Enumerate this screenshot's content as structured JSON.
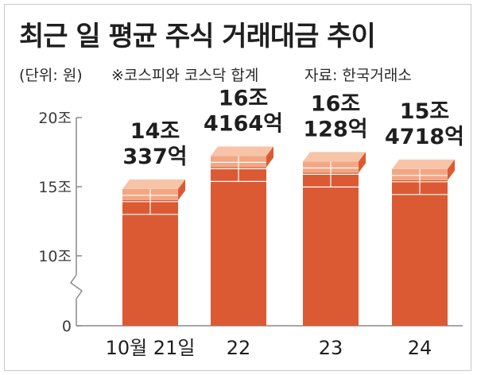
{
  "header": {
    "title": "최근 일 평균 주식 거래대금 추이",
    "unit": "(단위: 원)",
    "note": "※코스피와 코스닥 합계",
    "source": "자료: 한국거래소"
  },
  "colors": {
    "bar": "#dc5a33",
    "bar_top": "#f3a683",
    "bar_top_light": "#f7c4a8",
    "axis": "#8a8a8a"
  },
  "chart_data": {
    "type": "bar",
    "title": "최근 일 평균 주식 거래대금 추이",
    "ylabel": "",
    "xlabel": "",
    "y_tick_labels": [
      "20조",
      "15조",
      "10조",
      "0"
    ],
    "y_ticks": [
      20,
      15,
      10,
      0
    ],
    "y_axis_break": true,
    "categories": [
      "10월 21일",
      "22",
      "23",
      "24"
    ],
    "values": [
      14.0337,
      16.4164,
      16.0128,
      15.4718
    ],
    "data_labels": [
      [
        "14조",
        "337억"
      ],
      [
        "16조",
        "4164억"
      ],
      [
        "16조",
        "128억"
      ],
      [
        "15조",
        "4718억"
      ]
    ],
    "ylim": [
      0,
      20
    ]
  }
}
